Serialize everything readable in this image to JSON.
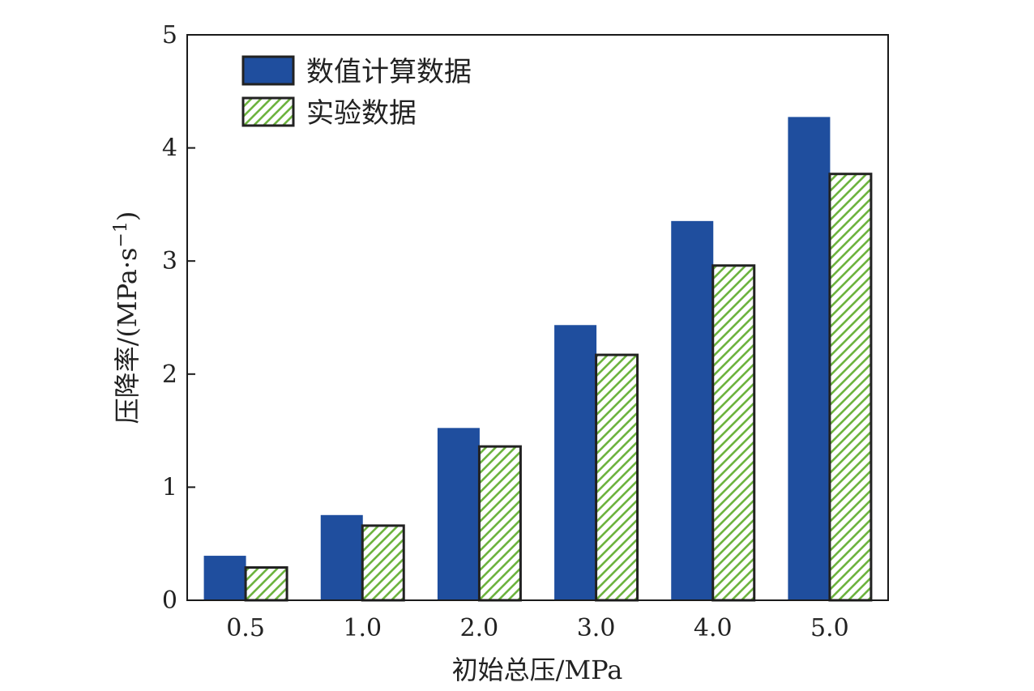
{
  "chart_data": {
    "type": "bar",
    "title": "",
    "xlabel": "初始总压/MPa",
    "ylabel": "压降率/(MPa·s",
    "ylabel_superscript": "−1",
    "ylabel_close": ")",
    "categories": [
      "0.5",
      "1.0",
      "2.0",
      "3.0",
      "4.0",
      "5.0"
    ],
    "series": [
      {
        "name": "数值计算数据",
        "values": [
          0.39,
          0.75,
          1.52,
          2.43,
          3.35,
          4.27
        ],
        "color": "#1f4e9e",
        "pattern": "solid"
      },
      {
        "name": "实验数据",
        "values": [
          0.29,
          0.66,
          1.36,
          2.17,
          2.96,
          3.77
        ],
        "color": "#6db33f",
        "pattern": "diagonal-hatch"
      }
    ],
    "ylim": [
      0,
      5
    ],
    "yticks": [
      "0",
      "1",
      "2",
      "3",
      "4",
      "5"
    ],
    "grid": false,
    "legend_position": "top-left"
  }
}
